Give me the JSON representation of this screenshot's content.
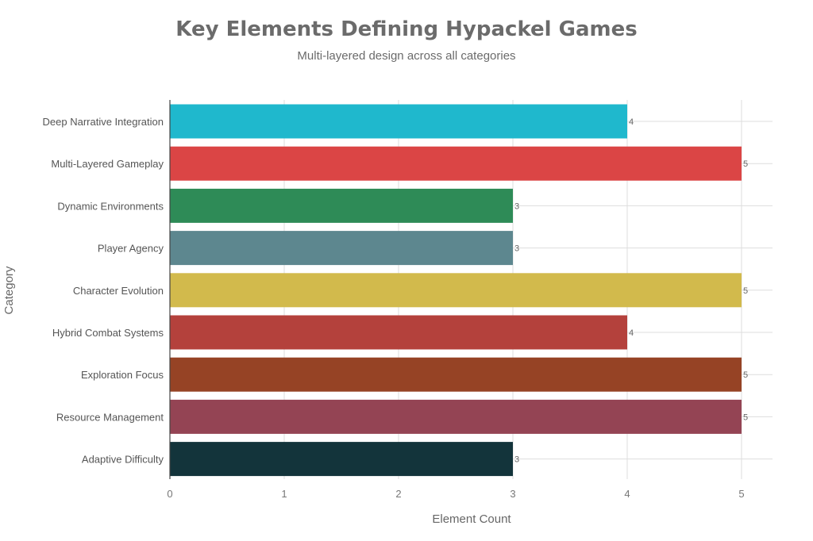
{
  "chart_data": {
    "type": "bar",
    "orientation": "horizontal",
    "title": "Key Elements Defining Hypackel Games",
    "subtitle": "Multi-layered design across all categories",
    "xlabel": "Element Count",
    "ylabel": "Category",
    "xlim": [
      0,
      5.25
    ],
    "xticks": [
      0,
      1,
      2,
      3,
      4,
      5
    ],
    "grid": true,
    "categories": [
      "Deep Narrative Integration",
      "Multi-Layered Gameplay",
      "Dynamic Environments",
      "Player Agency",
      "Character Evolution",
      "Hybrid Combat Systems",
      "Exploration Focus",
      "Resource Management",
      "Adaptive Difficulty"
    ],
    "values": [
      4,
      5,
      3,
      3,
      5,
      4,
      5,
      5,
      3
    ],
    "colors": [
      "#1fb8cd",
      "#db4545",
      "#2e8b57",
      "#5d878f",
      "#d2ba4c",
      "#b4413c",
      "#964325",
      "#944454",
      "#13343b"
    ]
  }
}
